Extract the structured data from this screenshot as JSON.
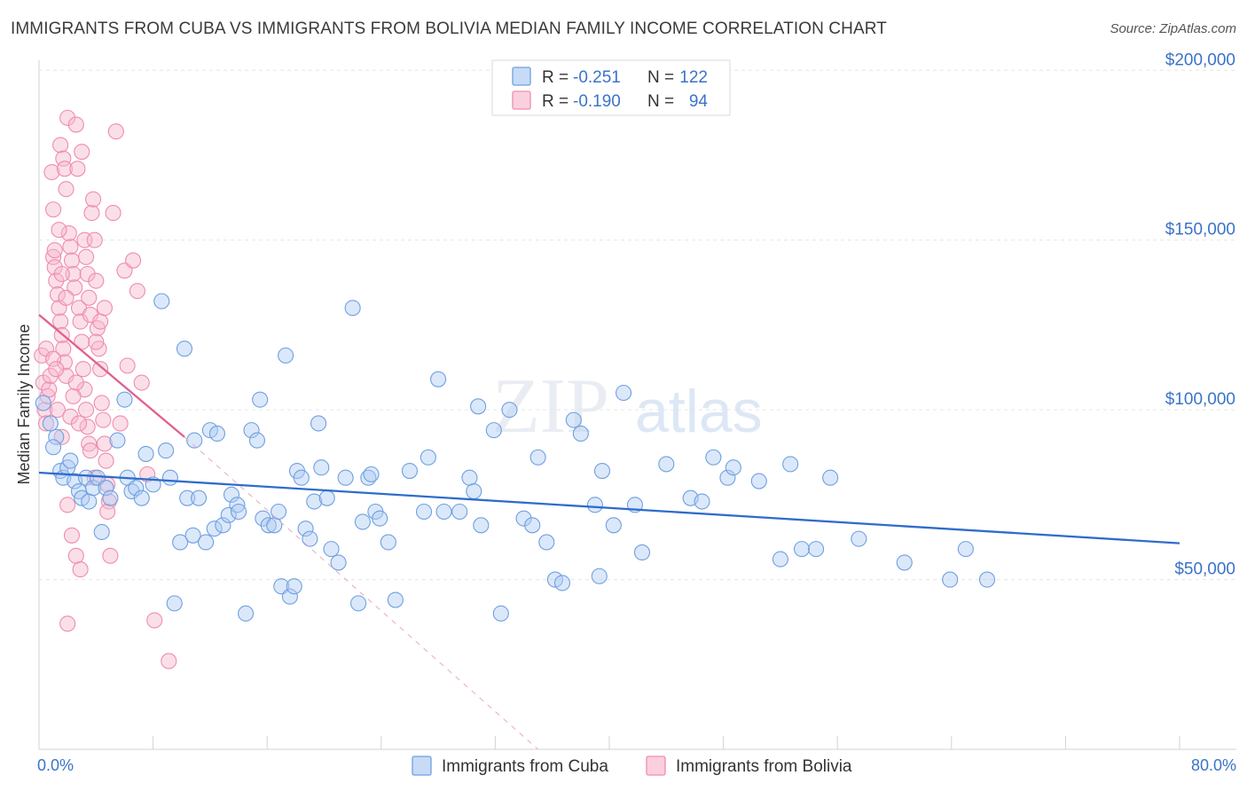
{
  "title": "IMMIGRANTS FROM CUBA VS IMMIGRANTS FROM BOLIVIA MEDIAN FAMILY INCOME CORRELATION CHART",
  "source": "Source: ZipAtlas.com",
  "watermark": {
    "zip": "ZIP",
    "atlas": "atlas"
  },
  "colors": {
    "cuba": "#6fa0e0",
    "cuba_line": "#2f6ccc",
    "bolivia": "#f08cae",
    "bolivia_line": "#e0608f",
    "axis_text": "#3b73c8"
  },
  "legend": {
    "cuba": {
      "r_label": "R =",
      "r_value": "-0.251",
      "n_label": "N =",
      "n_value": "122"
    },
    "bolivia": {
      "r_label": "R =",
      "r_value": "-0.190",
      "n_label": "N =",
      "n_value": "94"
    }
  },
  "chart_data": {
    "type": "scatter",
    "title": "IMMIGRANTS FROM CUBA VS IMMIGRANTS FROM BOLIVIA MEDIAN FAMILY INCOME CORRELATION CHART",
    "xlabel": "",
    "ylabel": "Median Family Income",
    "xlim": [
      0,
      80
    ],
    "ylim": [
      0,
      210000
    ],
    "x_tick_labels": [
      "0.0%",
      "80.0%"
    ],
    "y_ticks": [
      50000,
      100000,
      150000,
      200000
    ],
    "y_tick_labels": [
      "$50,000",
      "$100,000",
      "$150,000",
      "$200,000"
    ],
    "grid": true,
    "series": [
      {
        "name": "Immigrants from Cuba",
        "r": -0.251,
        "n": 122,
        "trend": {
          "x": [
            0,
            80
          ],
          "y": [
            81500,
            60700
          ]
        },
        "points": [
          [
            0.3,
            102000
          ],
          [
            0.8,
            96000
          ],
          [
            1.2,
            92000
          ],
          [
            1.0,
            89000
          ],
          [
            1.5,
            82000
          ],
          [
            1.7,
            80000
          ],
          [
            2.0,
            83000
          ],
          [
            2.2,
            85000
          ],
          [
            2.5,
            79000
          ],
          [
            2.8,
            76000
          ],
          [
            3.0,
            74000
          ],
          [
            3.3,
            80000
          ],
          [
            3.5,
            73000
          ],
          [
            3.8,
            77000
          ],
          [
            4.1,
            80000
          ],
          [
            4.4,
            64000
          ],
          [
            4.7,
            77000
          ],
          [
            5.0,
            74000
          ],
          [
            5.5,
            91000
          ],
          [
            6.0,
            103000
          ],
          [
            6.2,
            80000
          ],
          [
            6.5,
            76000
          ],
          [
            6.8,
            77000
          ],
          [
            7.2,
            74000
          ],
          [
            7.5,
            87000
          ],
          [
            8.0,
            78000
          ],
          [
            8.6,
            132000
          ],
          [
            8.9,
            88000
          ],
          [
            9.2,
            80000
          ],
          [
            9.5,
            43000
          ],
          [
            9.9,
            61000
          ],
          [
            10.2,
            118000
          ],
          [
            10.4,
            74000
          ],
          [
            10.8,
            63000
          ],
          [
            10.9,
            91000
          ],
          [
            11.2,
            74000
          ],
          [
            11.7,
            61000
          ],
          [
            12.0,
            94000
          ],
          [
            12.3,
            65000
          ],
          [
            12.5,
            93000
          ],
          [
            12.9,
            66000
          ],
          [
            13.3,
            69000
          ],
          [
            13.5,
            75000
          ],
          [
            13.9,
            72000
          ],
          [
            14.0,
            70000
          ],
          [
            14.5,
            40000
          ],
          [
            14.9,
            94000
          ],
          [
            15.3,
            91000
          ],
          [
            15.5,
            103000
          ],
          [
            15.7,
            68000
          ],
          [
            16.1,
            66000
          ],
          [
            16.5,
            66000
          ],
          [
            16.8,
            70000
          ],
          [
            17.0,
            48000
          ],
          [
            17.3,
            116000
          ],
          [
            17.6,
            45000
          ],
          [
            17.9,
            48000
          ],
          [
            18.1,
            82000
          ],
          [
            18.4,
            80000
          ],
          [
            18.7,
            65000
          ],
          [
            19.0,
            62000
          ],
          [
            19.3,
            73000
          ],
          [
            19.6,
            96000
          ],
          [
            19.8,
            83000
          ],
          [
            20.2,
            74000
          ],
          [
            20.5,
            59000
          ],
          [
            21.0,
            55000
          ],
          [
            21.5,
            80000
          ],
          [
            22.0,
            130000
          ],
          [
            22.4,
            43000
          ],
          [
            22.7,
            67000
          ],
          [
            23.1,
            80000
          ],
          [
            23.3,
            81000
          ],
          [
            23.6,
            70000
          ],
          [
            23.9,
            68000
          ],
          [
            24.5,
            61000
          ],
          [
            25.0,
            44000
          ],
          [
            26.0,
            82000
          ],
          [
            27.0,
            70000
          ],
          [
            27.3,
            86000
          ],
          [
            28.0,
            109000
          ],
          [
            28.4,
            70000
          ],
          [
            29.5,
            70000
          ],
          [
            30.2,
            80000
          ],
          [
            30.5,
            76000
          ],
          [
            30.8,
            101000
          ],
          [
            31.0,
            66000
          ],
          [
            31.9,
            94000
          ],
          [
            32.4,
            40000
          ],
          [
            33.0,
            100000
          ],
          [
            34.0,
            68000
          ],
          [
            34.6,
            66000
          ],
          [
            35.0,
            86000
          ],
          [
            35.6,
            61000
          ],
          [
            36.2,
            50000
          ],
          [
            36.7,
            49000
          ],
          [
            37.5,
            97000
          ],
          [
            38.0,
            93000
          ],
          [
            39.0,
            72000
          ],
          [
            39.3,
            51000
          ],
          [
            39.5,
            82000
          ],
          [
            40.3,
            66000
          ],
          [
            41.0,
            105000
          ],
          [
            41.8,
            72000
          ],
          [
            42.3,
            58000
          ],
          [
            44.0,
            84000
          ],
          [
            45.7,
            74000
          ],
          [
            46.5,
            73000
          ],
          [
            47.3,
            86000
          ],
          [
            48.3,
            80000
          ],
          [
            48.7,
            83000
          ],
          [
            50.5,
            79000
          ],
          [
            52.0,
            56000
          ],
          [
            52.7,
            84000
          ],
          [
            53.5,
            59000
          ],
          [
            54.5,
            59000
          ],
          [
            55.5,
            80000
          ],
          [
            57.5,
            62000
          ],
          [
            60.7,
            55000
          ],
          [
            63.9,
            50000
          ],
          [
            65.0,
            59000
          ],
          [
            66.5,
            50000
          ]
        ]
      },
      {
        "name": "Immigrants from Bolivia",
        "r": -0.19,
        "n": 94,
        "trend": {
          "x": [
            0,
            10.2
          ],
          "y": [
            128000,
            92000
          ]
        },
        "trend_extension": {
          "x": [
            10.2,
            35.0
          ],
          "y": [
            92000,
            0
          ]
        },
        "points": [
          [
            0.2,
            116000
          ],
          [
            0.3,
            108000
          ],
          [
            0.4,
            100000
          ],
          [
            0.5,
            96000
          ],
          [
            0.5,
            118000
          ],
          [
            0.6,
            104000
          ],
          [
            0.7,
            106000
          ],
          [
            0.8,
            110000
          ],
          [
            0.9,
            170000
          ],
          [
            1.0,
            159000
          ],
          [
            1.0,
            145000
          ],
          [
            1.1,
            142000
          ],
          [
            1.2,
            138000
          ],
          [
            1.3,
            134000
          ],
          [
            1.4,
            130000
          ],
          [
            1.5,
            126000
          ],
          [
            1.6,
            122000
          ],
          [
            1.7,
            118000
          ],
          [
            1.8,
            114000
          ],
          [
            1.9,
            110000
          ],
          [
            1.5,
            178000
          ],
          [
            1.7,
            174000
          ],
          [
            1.8,
            171000
          ],
          [
            1.9,
            165000
          ],
          [
            2.0,
            186000
          ],
          [
            2.1,
            152000
          ],
          [
            2.2,
            148000
          ],
          [
            2.3,
            144000
          ],
          [
            2.4,
            140000
          ],
          [
            2.5,
            136000
          ],
          [
            2.6,
            184000
          ],
          [
            2.7,
            171000
          ],
          [
            2.8,
            130000
          ],
          [
            2.9,
            126000
          ],
          [
            3.0,
            120000
          ],
          [
            3.1,
            112000
          ],
          [
            3.2,
            106000
          ],
          [
            3.3,
            100000
          ],
          [
            3.4,
            95000
          ],
          [
            3.5,
            90000
          ],
          [
            2.0,
            72000
          ],
          [
            2.3,
            63000
          ],
          [
            2.6,
            57000
          ],
          [
            2.9,
            53000
          ],
          [
            3.0,
            176000
          ],
          [
            3.2,
            150000
          ],
          [
            3.3,
            145000
          ],
          [
            3.4,
            140000
          ],
          [
            3.5,
            133000
          ],
          [
            3.6,
            128000
          ],
          [
            3.7,
            158000
          ],
          [
            3.8,
            162000
          ],
          [
            3.9,
            150000
          ],
          [
            4.0,
            138000
          ],
          [
            4.1,
            124000
          ],
          [
            4.2,
            118000
          ],
          [
            4.3,
            112000
          ],
          [
            4.4,
            102000
          ],
          [
            4.5,
            97000
          ],
          [
            4.6,
            90000
          ],
          [
            4.7,
            85000
          ],
          [
            4.8,
            78000
          ],
          [
            4.9,
            73000
          ],
          [
            5.0,
            57000
          ],
          [
            5.2,
            158000
          ],
          [
            5.4,
            182000
          ],
          [
            5.7,
            96000
          ],
          [
            6.0,
            141000
          ],
          [
            6.2,
            113000
          ],
          [
            6.6,
            144000
          ],
          [
            6.9,
            135000
          ],
          [
            7.2,
            108000
          ],
          [
            7.6,
            81000
          ],
          [
            8.1,
            38000
          ],
          [
            2.0,
            37000
          ],
          [
            9.1,
            26000
          ],
          [
            1.0,
            115000
          ],
          [
            1.2,
            112000
          ],
          [
            1.3,
            100000
          ],
          [
            1.6,
            92000
          ],
          [
            2.2,
            98000
          ],
          [
            2.4,
            104000
          ],
          [
            2.6,
            108000
          ],
          [
            2.8,
            96000
          ],
          [
            3.6,
            88000
          ],
          [
            3.9,
            80000
          ],
          [
            4.0,
            120000
          ],
          [
            4.3,
            126000
          ],
          [
            4.6,
            130000
          ],
          [
            4.8,
            70000
          ],
          [
            1.1,
            147000
          ],
          [
            1.4,
            153000
          ],
          [
            1.6,
            140000
          ],
          [
            1.9,
            133000
          ]
        ]
      }
    ]
  },
  "bottom_legend": {
    "cuba": "Immigrants from Cuba",
    "bolivia": "Immigrants from Bolivia"
  }
}
